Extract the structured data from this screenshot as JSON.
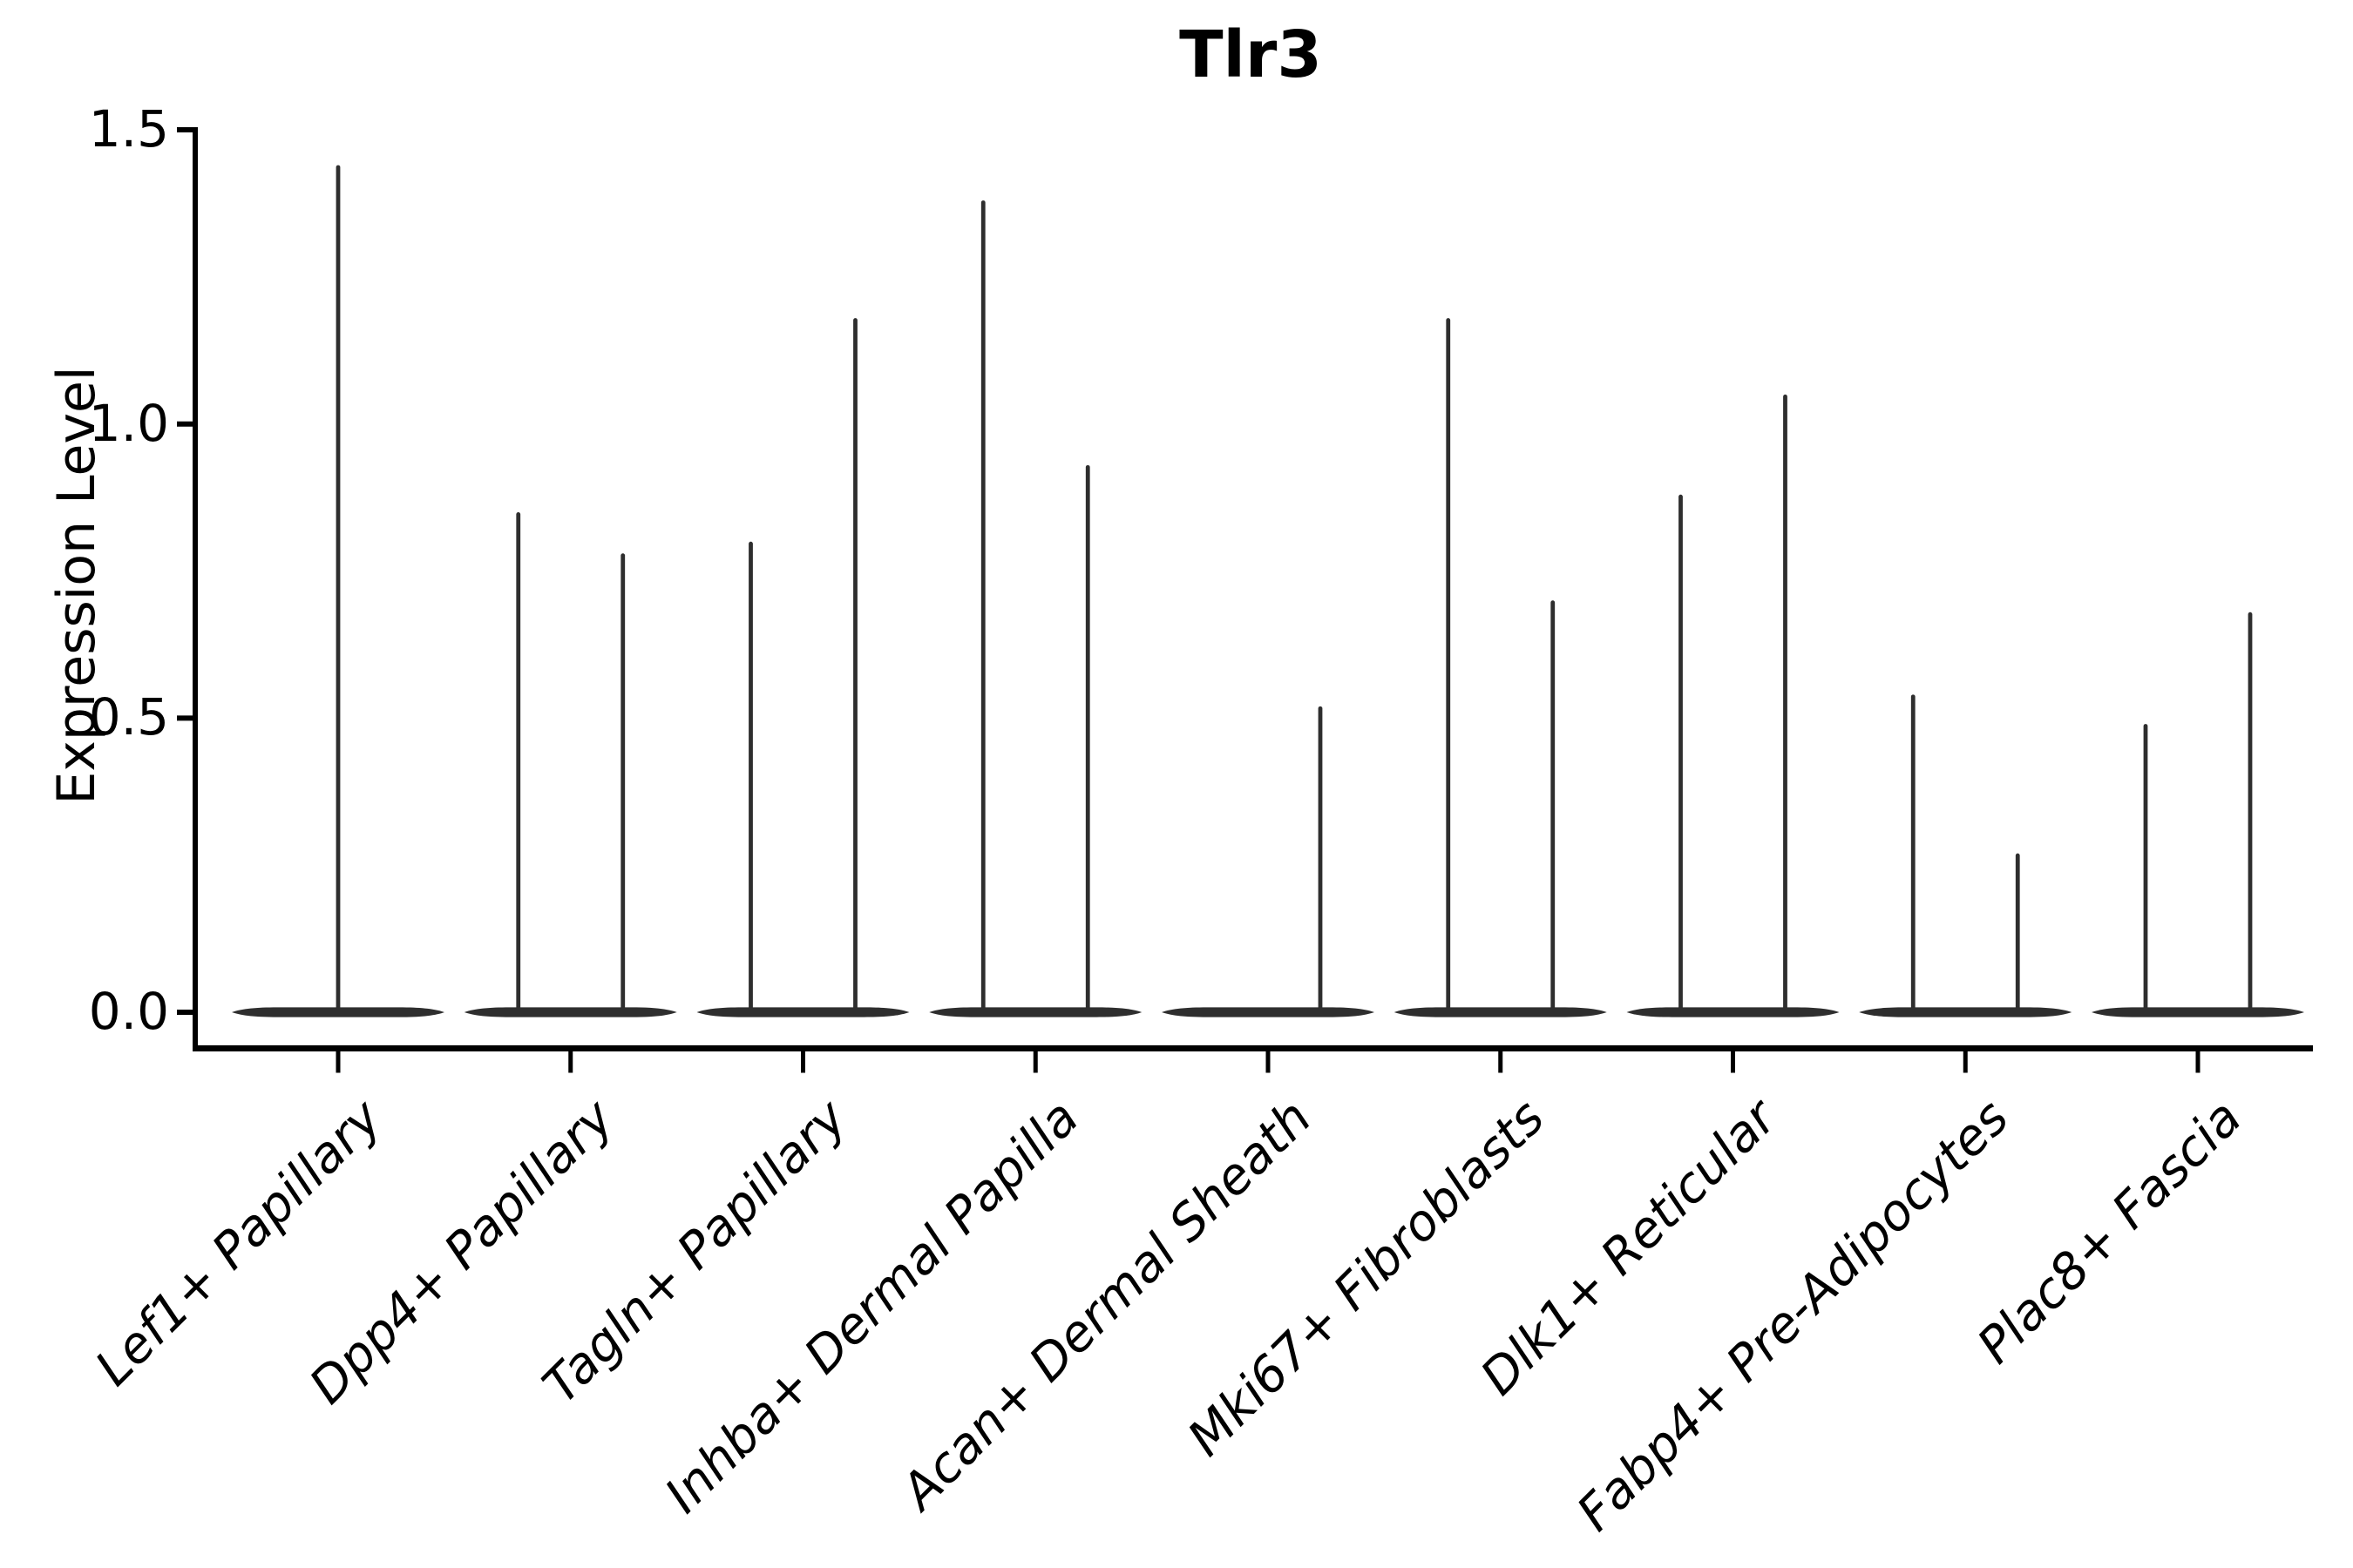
{
  "chart_data": {
    "type": "violin",
    "title": "Tlr3",
    "ylabel": "Expression Level",
    "xlabel": "",
    "grid": false,
    "legend": "none",
    "ylim": [
      -0.06,
      1.5
    ],
    "ytick_values": [
      0.0,
      0.5,
      1.0,
      1.5
    ],
    "ytick_labels": [
      "0.0",
      "0.5",
      "1.0",
      "1.5"
    ],
    "categories": [
      "Lef1+ Papillary",
      "Dpp4+ Papillary",
      "Tagln+ Papillary",
      "Inhba+ Dermal Papilla",
      "Acan+ Dermal Sheath",
      "Mki67+ Fibroblasts",
      "Dlk1+ Reticular",
      "Fabp4+ Pre-Adipocytes",
      "Plac8+ Fascia"
    ],
    "violins": [
      {
        "category": "Lef1+ Papillary",
        "groups": [
          {
            "position": "center",
            "max_expression": 1.44
          }
        ]
      },
      {
        "category": "Dpp4+ Papillary",
        "groups": [
          {
            "position": "left",
            "max_expression": 0.85
          },
          {
            "position": "right",
            "max_expression": 0.78
          }
        ]
      },
      {
        "category": "Tagln+ Papillary",
        "groups": [
          {
            "position": "left",
            "max_expression": 0.8
          },
          {
            "position": "right",
            "max_expression": 1.18
          }
        ]
      },
      {
        "category": "Inhba+ Dermal Papilla",
        "groups": [
          {
            "position": "left",
            "max_expression": 1.38
          },
          {
            "position": "right",
            "max_expression": 0.93
          }
        ]
      },
      {
        "category": "Acan+ Dermal Sheath",
        "groups": [
          {
            "position": "left",
            "max_expression": 0.0
          },
          {
            "position": "right",
            "max_expression": 0.52
          }
        ]
      },
      {
        "category": "Mki67+ Fibroblasts",
        "groups": [
          {
            "position": "left",
            "max_expression": 1.18
          },
          {
            "position": "right",
            "max_expression": 0.7
          }
        ]
      },
      {
        "category": "Dlk1+ Reticular",
        "groups": [
          {
            "position": "left",
            "max_expression": 0.88
          },
          {
            "position": "right",
            "max_expression": 1.05
          }
        ]
      },
      {
        "category": "Fabp4+ Pre-Adipocytes",
        "groups": [
          {
            "position": "left",
            "max_expression": 0.54
          },
          {
            "position": "right",
            "max_expression": 0.27
          }
        ]
      },
      {
        "category": "Plac8+ Fascia",
        "groups": [
          {
            "position": "left",
            "max_expression": 0.49
          },
          {
            "position": "right",
            "max_expression": 0.68
          }
        ]
      }
    ],
    "colors": {
      "background": "#ffffff",
      "axis": "#000000",
      "text": "#000000",
      "violin": "#2e2e2e"
    }
  }
}
